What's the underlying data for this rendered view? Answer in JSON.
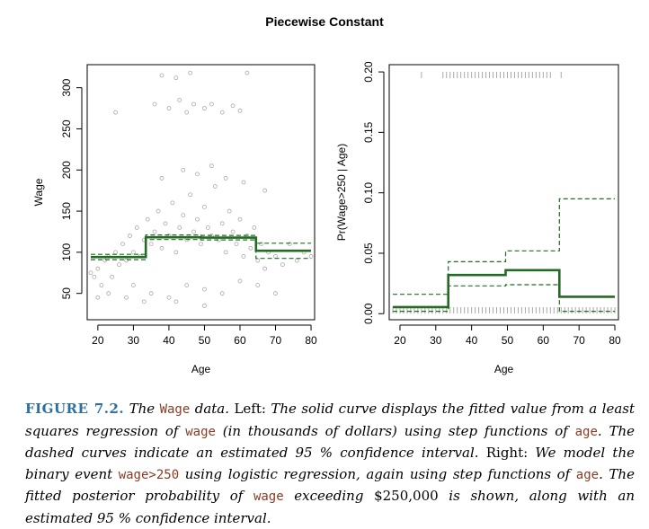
{
  "figure_title": "Piecewise Constant",
  "colors": {
    "fit": "#236b23",
    "points": "#a8a8a8",
    "rug": "#a8a8a8",
    "caption_label": "#2e6fa3",
    "code": "#8a3b24"
  },
  "chart_data": [
    {
      "type": "scatter",
      "title": "",
      "xlabel": "Age",
      "ylabel": "Wage",
      "xlim": [
        17,
        81
      ],
      "ylim": [
        18,
        328
      ],
      "xticks": [
        20,
        30,
        40,
        50,
        60,
        70,
        80
      ],
      "yticks": [
        50,
        100,
        150,
        200,
        250,
        300
      ],
      "grid": false,
      "scatter_points": [
        [
          18,
          75
        ],
        [
          19,
          70
        ],
        [
          20,
          80
        ],
        [
          21,
          60
        ],
        [
          22,
          90
        ],
        [
          23,
          95
        ],
        [
          24,
          70
        ],
        [
          25,
          100
        ],
        [
          26,
          85
        ],
        [
          27,
          110
        ],
        [
          28,
          90
        ],
        [
          29,
          120
        ],
        [
          30,
          100
        ],
        [
          31,
          130
        ],
        [
          32,
          95
        ],
        [
          33,
          115
        ],
        [
          34,
          140
        ],
        [
          35,
          110
        ],
        [
          36,
          125
        ],
        [
          37,
          150
        ],
        [
          38,
          105
        ],
        [
          39,
          135
        ],
        [
          40,
          120
        ],
        [
          41,
          160
        ],
        [
          42,
          100
        ],
        [
          43,
          130
        ],
        [
          44,
          145
        ],
        [
          45,
          115
        ],
        [
          46,
          170
        ],
        [
          47,
          125
        ],
        [
          48,
          140
        ],
        [
          49,
          110
        ],
        [
          50,
          155
        ],
        [
          51,
          130
        ],
        [
          52,
          120
        ],
        [
          53,
          180
        ],
        [
          54,
          115
        ],
        [
          55,
          135
        ],
        [
          56,
          100
        ],
        [
          57,
          150
        ],
        [
          58,
          125
        ],
        [
          59,
          110
        ],
        [
          60,
          140
        ],
        [
          61,
          95
        ],
        [
          62,
          120
        ],
        [
          63,
          105
        ],
        [
          64,
          130
        ],
        [
          65,
          90
        ],
        [
          66,
          110
        ],
        [
          67,
          80
        ],
        [
          68,
          100
        ],
        [
          70,
          95
        ],
        [
          72,
          85
        ],
        [
          74,
          110
        ],
        [
          76,
          90
        ],
        [
          78,
          100
        ],
        [
          80,
          95
        ],
        [
          36,
          280
        ],
        [
          40,
          275
        ],
        [
          43,
          285
        ],
        [
          45,
          270
        ],
        [
          47,
          280
        ],
        [
          50,
          275
        ],
        [
          52,
          280
        ],
        [
          55,
          270
        ],
        [
          58,
          278
        ],
        [
          60,
          272
        ],
        [
          38,
          315
        ],
        [
          42,
          312
        ],
        [
          46,
          318
        ],
        [
          62,
          318
        ],
        [
          25,
          270
        ],
        [
          30,
          60
        ],
        [
          35,
          50
        ],
        [
          40,
          45
        ],
        [
          45,
          60
        ],
        [
          50,
          55
        ],
        [
          55,
          50
        ],
        [
          60,
          65
        ],
        [
          28,
          45
        ],
        [
          33,
          40
        ],
        [
          65,
          60
        ],
        [
          70,
          50
        ],
        [
          44,
          200
        ],
        [
          48,
          195
        ],
        [
          52,
          205
        ],
        [
          38,
          190
        ],
        [
          56,
          190
        ],
        [
          61,
          185
        ],
        [
          67,
          175
        ],
        [
          42,
          40
        ],
        [
          50,
          35
        ],
        [
          23,
          50
        ],
        [
          20,
          45
        ]
      ],
      "series": [
        {
          "name": "",
          "style": "solid",
          "segments": [
            {
              "x": [
                18,
                33.5
              ],
              "y": 94.2
            },
            {
              "x": [
                33.5,
                49
              ],
              "y": 118.2
            },
            {
              "x": [
                49,
                64.5
              ],
              "y": 117.8
            },
            {
              "x": [
                64.5,
                80
              ],
              "y": 101.8
            }
          ]
        },
        {
          "name": "",
          "style": "dashed",
          "segments": [
            {
              "x": [
                18,
                33.5
              ],
              "y": 97.5
            },
            {
              "x": [
                33.5,
                49
              ],
              "y": 121
            },
            {
              "x": [
                49,
                64.5
              ],
              "y": 120.5
            },
            {
              "x": [
                64.5,
                80
              ],
              "y": 111
            }
          ]
        },
        {
          "name": "",
          "style": "dashed",
          "segments": [
            {
              "x": [
                18,
                33.5
              ],
              "y": 91
            },
            {
              "x": [
                33.5,
                49
              ],
              "y": 115.5
            },
            {
              "x": [
                49,
                64.5
              ],
              "y": 115
            },
            {
              "x": [
                64.5,
                80
              ],
              "y": 92.5
            }
          ]
        }
      ]
    },
    {
      "type": "line",
      "title": "",
      "xlabel": "Age",
      "ylabel": "Pr(Wage>250 | Age)",
      "xlim": [
        17,
        81
      ],
      "ylim": [
        -0.005,
        0.206
      ],
      "xticks": [
        20,
        30,
        40,
        50,
        60,
        70,
        80
      ],
      "yticks": [
        0.0,
        0.05,
        0.1,
        0.15,
        0.2
      ],
      "ytick_labels": [
        "0.00",
        "0.05",
        "0.10",
        "0.15",
        "0.20"
      ],
      "grid": false,
      "rug_top": [
        26,
        32,
        33,
        34,
        35,
        36,
        37,
        38,
        39,
        40,
        41,
        42,
        43,
        44,
        45,
        46,
        47,
        48,
        49,
        50,
        51,
        52,
        53,
        54,
        55,
        56,
        57,
        58,
        59,
        60,
        61,
        62,
        65
      ],
      "rug_bottom": [
        18,
        19,
        20,
        21,
        22,
        23,
        24,
        25,
        26,
        27,
        28,
        29,
        30,
        31,
        32,
        33,
        34,
        35,
        36,
        37,
        38,
        39,
        40,
        41,
        42,
        43,
        44,
        45,
        46,
        47,
        48,
        49,
        50,
        51,
        52,
        53,
        54,
        55,
        56,
        57,
        58,
        59,
        60,
        61,
        62,
        63,
        64,
        65,
        66,
        67,
        68,
        69,
        70,
        71,
        72,
        73,
        74,
        75,
        76,
        77,
        78,
        79,
        80
      ],
      "series": [
        {
          "name": "",
          "style": "solid",
          "segments": [
            {
              "x": [
                18,
                33.5
              ],
              "y": 0.0055
            },
            {
              "x": [
                33.5,
                49.5
              ],
              "y": 0.032
            },
            {
              "x": [
                49.5,
                64.5
              ],
              "y": 0.036
            },
            {
              "x": [
                64.5,
                80
              ],
              "y": 0.014
            }
          ]
        },
        {
          "name": "",
          "style": "dashed",
          "segments": [
            {
              "x": [
                18,
                33.5
              ],
              "y": 0.016
            },
            {
              "x": [
                33.5,
                49.5
              ],
              "y": 0.043
            },
            {
              "x": [
                49.5,
                64.5
              ],
              "y": 0.052
            },
            {
              "x": [
                64.5,
                80
              ],
              "y": 0.095
            }
          ]
        },
        {
          "name": "",
          "style": "dashed",
          "segments": [
            {
              "x": [
                18,
                33.5
              ],
              "y": 0.002
            },
            {
              "x": [
                33.5,
                49.5
              ],
              "y": 0.023
            },
            {
              "x": [
                49.5,
                64.5
              ],
              "y": 0.024
            },
            {
              "x": [
                64.5,
                80
              ],
              "y": 0.002
            }
          ]
        }
      ]
    }
  ],
  "caption": {
    "label": "FIGURE 7.2.",
    "p1": " The ",
    "c1": "Wage",
    "p2": " data. ",
    "p3": "Left: ",
    "p4": "The solid curve displays the fitted value from a least squares regression of ",
    "c2": "wage",
    "p5": " (in thousands of dollars) using step functions of ",
    "c3": "age",
    "p6": ". The dashed curves indicate an estimated 95 % confidence interval. ",
    "p7": "Right: ",
    "p8": "We model the binary event ",
    "c4": "wage>250",
    "p9": " using logistic regression, again using step functions of ",
    "c5": "age",
    "p10": ". The fitted posterior probability of ",
    "c6": "wage",
    "p11": " exceeding ",
    "p12": "$250,000",
    "p13": " is shown, along with an estimated 95 % confidence interval."
  }
}
